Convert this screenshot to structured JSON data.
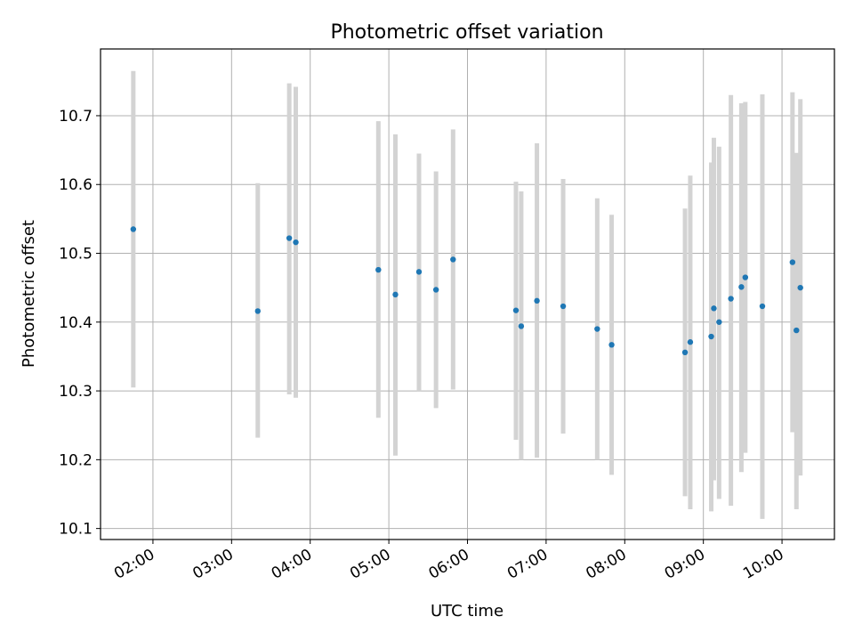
{
  "chart_data": {
    "type": "scatter",
    "title": "Photometric offset variation",
    "xlabel": "UTC time",
    "ylabel": "Photometric offset",
    "xlim": [
      "01:20",
      "10:40"
    ],
    "ylim": [
      10.084,
      10.797
    ],
    "grid": true,
    "x_ticks": [
      "02:00",
      "03:00",
      "04:00",
      "05:00",
      "06:00",
      "07:00",
      "08:00",
      "09:00",
      "10:00"
    ],
    "y_ticks": [
      "10.1",
      "10.2",
      "10.3",
      "10.4",
      "10.5",
      "10.6",
      "10.7"
    ],
    "colors": {
      "point": "#1f77b4",
      "error_bar": "#d3d3d3",
      "grid": "#b0b0b0"
    },
    "points": [
      {
        "x": "01:45",
        "y": 10.535,
        "ylow": 10.305,
        "yhigh": 10.765
      },
      {
        "x": "03:20",
        "y": 10.416,
        "ylow": 10.232,
        "yhigh": 10.602
      },
      {
        "x": "03:44",
        "y": 10.522,
        "ylow": 10.295,
        "yhigh": 10.747
      },
      {
        "x": "03:49",
        "y": 10.516,
        "ylow": 10.29,
        "yhigh": 10.742
      },
      {
        "x": "04:52",
        "y": 10.476,
        "ylow": 10.261,
        "yhigh": 10.692
      },
      {
        "x": "05:05",
        "y": 10.44,
        "ylow": 10.206,
        "yhigh": 10.673
      },
      {
        "x": "05:23",
        "y": 10.473,
        "ylow": 10.3,
        "yhigh": 10.645
      },
      {
        "x": "05:36",
        "y": 10.447,
        "ylow": 10.275,
        "yhigh": 10.619
      },
      {
        "x": "05:49",
        "y": 10.491,
        "ylow": 10.302,
        "yhigh": 10.68
      },
      {
        "x": "06:37",
        "y": 10.417,
        "ylow": 10.229,
        "yhigh": 10.604
      },
      {
        "x": "06:41",
        "y": 10.394,
        "ylow": 10.2,
        "yhigh": 10.59
      },
      {
        "x": "06:53",
        "y": 10.431,
        "ylow": 10.203,
        "yhigh": 10.66
      },
      {
        "x": "07:13",
        "y": 10.423,
        "ylow": 10.238,
        "yhigh": 10.608
      },
      {
        "x": "07:39",
        "y": 10.39,
        "ylow": 10.2,
        "yhigh": 10.58
      },
      {
        "x": "07:50",
        "y": 10.367,
        "ylow": 10.178,
        "yhigh": 10.556
      },
      {
        "x": "08:46",
        "y": 10.356,
        "ylow": 10.147,
        "yhigh": 10.565
      },
      {
        "x": "08:50",
        "y": 10.371,
        "ylow": 10.128,
        "yhigh": 10.613
      },
      {
        "x": "09:06",
        "y": 10.379,
        "ylow": 10.125,
        "yhigh": 10.632
      },
      {
        "x": "09:08",
        "y": 10.42,
        "ylow": 10.17,
        "yhigh": 10.668
      },
      {
        "x": "09:12",
        "y": 10.4,
        "ylow": 10.143,
        "yhigh": 10.655
      },
      {
        "x": "09:21",
        "y": 10.434,
        "ylow": 10.133,
        "yhigh": 10.73
      },
      {
        "x": "09:29",
        "y": 10.451,
        "ylow": 10.182,
        "yhigh": 10.718
      },
      {
        "x": "09:32",
        "y": 10.465,
        "ylow": 10.21,
        "yhigh": 10.72
      },
      {
        "x": "09:45",
        "y": 10.423,
        "ylow": 10.114,
        "yhigh": 10.731
      },
      {
        "x": "10:08",
        "y": 10.487,
        "ylow": 10.24,
        "yhigh": 10.734
      },
      {
        "x": "10:11",
        "y": 10.388,
        "ylow": 10.128,
        "yhigh": 10.646
      },
      {
        "x": "10:14",
        "y": 10.45,
        "ylow": 10.177,
        "yhigh": 10.724
      }
    ]
  }
}
